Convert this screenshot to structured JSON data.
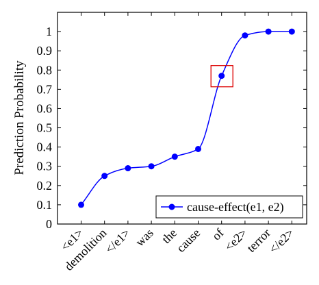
{
  "chart_data": {
    "type": "line",
    "title": "",
    "xlabel": "",
    "ylabel": "Prediction Probability",
    "categories": [
      "<e1>",
      "demolition",
      "</e1>",
      "was",
      "the",
      "cause",
      "of",
      "<e2>",
      "terror",
      "</e2>"
    ],
    "series": [
      {
        "name": "cause-effect(e1, e2)",
        "color": "#0000ff",
        "values": [
          0.1,
          0.25,
          0.29,
          0.3,
          0.35,
          0.39,
          0.77,
          0.98,
          1.0,
          1.0
        ]
      }
    ],
    "ylim": [
      0,
      1.1
    ],
    "yticks": [
      0,
      0.1,
      0.2,
      0.3,
      0.4,
      0.5,
      0.6,
      0.7,
      0.8,
      0.9,
      1
    ],
    "ytick_labels": [
      "0",
      "0.1",
      "0.2",
      "0.3",
      "0.4",
      "0.5",
      "0.6",
      "0.7",
      "0.8",
      "0.9",
      "1"
    ],
    "grid": false,
    "smooth": true,
    "legend_position": "bottom-right",
    "highlight": {
      "category": "of",
      "color": "#dd0000"
    }
  }
}
